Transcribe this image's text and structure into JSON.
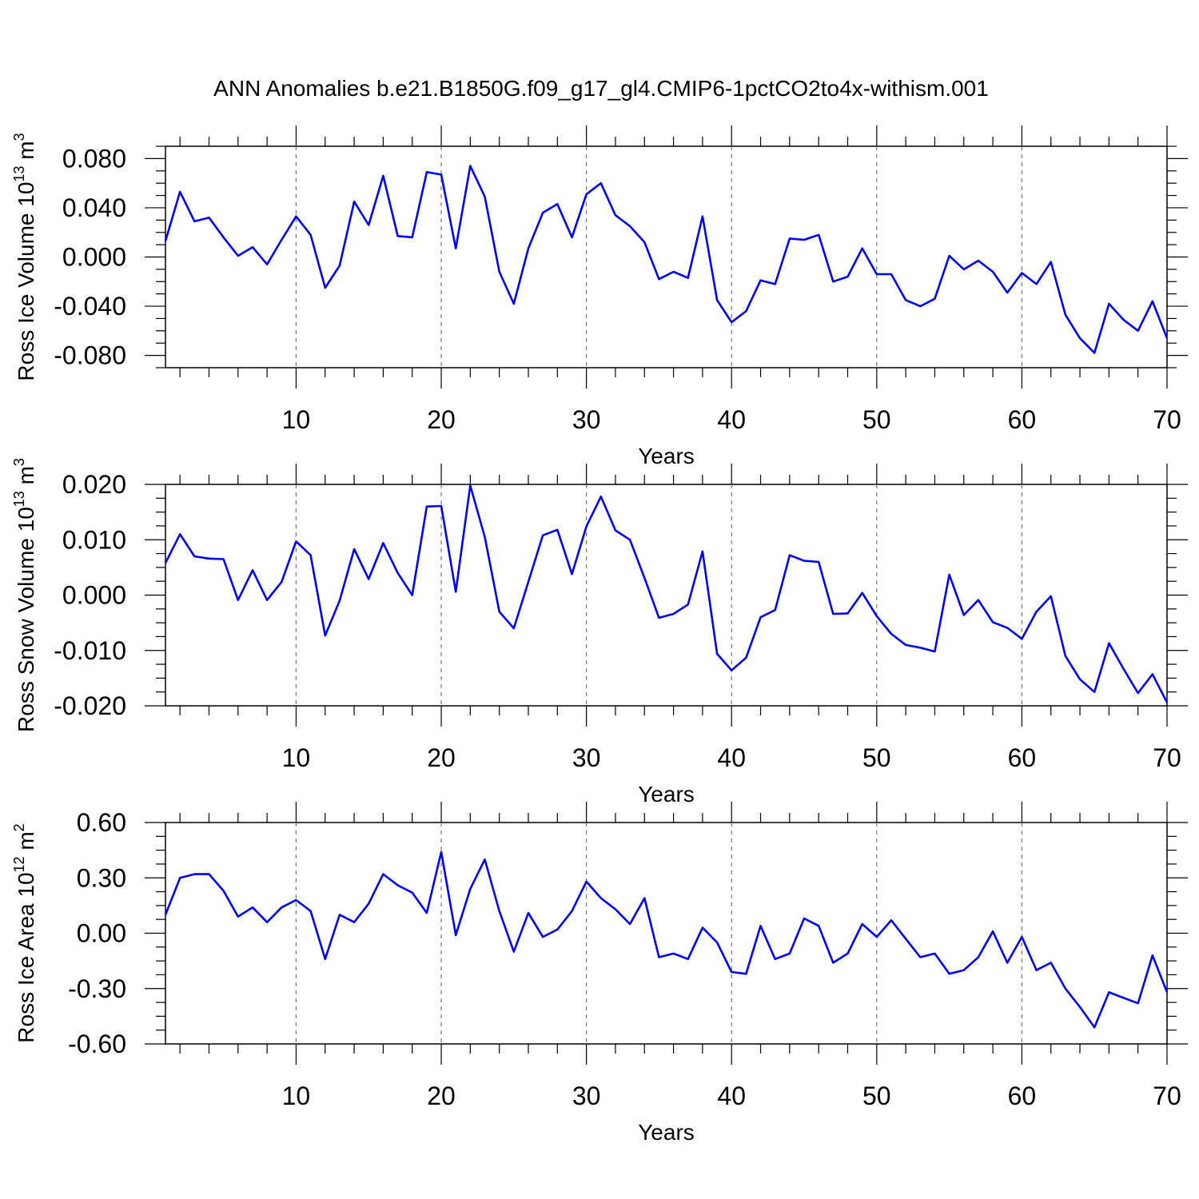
{
  "title": "ANN Anomalies b.e21.B1850G.f09_g17_gl4.CMIP6-1pctCO2to4x-withism.001",
  "chart_data": [
    {
      "type": "line",
      "title": "",
      "xlabel": "Years",
      "ylabel": "Ross Ice Volume 10",
      "ylabel_exp": "13",
      "ylabel_unit": " m",
      "ylabel_unit_exp": "3",
      "xlim": [
        1,
        70
      ],
      "ylim": [
        -0.09,
        0.09
      ],
      "xticks": [
        10,
        20,
        30,
        40,
        50,
        60,
        70
      ],
      "yticks": [
        -0.08,
        -0.04,
        0.0,
        0.04,
        0.08
      ],
      "ytick_labels": [
        "-0.080",
        "-0.040",
        "0.000",
        "0.040",
        "0.080"
      ],
      "grid": "vertical dashed at major x ticks",
      "color": "#0000ff",
      "x": [
        1,
        2,
        3,
        4,
        5,
        6,
        7,
        8,
        9,
        10,
        11,
        12,
        13,
        14,
        15,
        16,
        17,
        18,
        19,
        20,
        21,
        22,
        23,
        24,
        25,
        26,
        27,
        28,
        29,
        30,
        31,
        32,
        33,
        34,
        35,
        36,
        37,
        38,
        39,
        40,
        41,
        42,
        43,
        44,
        45,
        46,
        47,
        48,
        49,
        50,
        51,
        52,
        53,
        54,
        55,
        56,
        57,
        58,
        59,
        60,
        61,
        62,
        63,
        64,
        65,
        66,
        67,
        68,
        69,
        70
      ],
      "values": [
        0.013,
        0.053,
        0.029,
        0.032,
        0.016,
        0.001,
        0.008,
        -0.006,
        0.014,
        0.033,
        0.018,
        -0.025,
        -0.007,
        0.045,
        0.026,
        0.066,
        0.017,
        0.016,
        0.069,
        0.067,
        0.007,
        0.074,
        0.049,
        -0.012,
        -0.038,
        0.007,
        0.036,
        0.043,
        0.016,
        0.051,
        0.06,
        0.034,
        0.025,
        0.012,
        -0.018,
        -0.012,
        -0.017,
        0.033,
        -0.035,
        -0.053,
        -0.044,
        -0.019,
        -0.022,
        0.015,
        0.014,
        0.018,
        -0.02,
        -0.016,
        0.007,
        -0.014,
        -0.014,
        -0.035,
        -0.04,
        -0.034,
        0.001,
        -0.01,
        -0.003,
        -0.012,
        -0.029,
        -0.013,
        -0.022,
        -0.004,
        -0.047,
        -0.066,
        -0.078,
        -0.038,
        -0.051,
        -0.06,
        -0.036,
        -0.066
      ]
    },
    {
      "type": "line",
      "title": "",
      "xlabel": "Years",
      "ylabel": "Ross Snow Volume 10",
      "ylabel_exp": "13",
      "ylabel_unit": " m",
      "ylabel_unit_exp": "3",
      "xlim": [
        1,
        70
      ],
      "ylim": [
        -0.02,
        0.02
      ],
      "xticks": [
        10,
        20,
        30,
        40,
        50,
        60,
        70
      ],
      "yticks": [
        -0.02,
        -0.01,
        0.0,
        0.01,
        0.02
      ],
      "ytick_labels": [
        "-0.020",
        "-0.010",
        "0.000",
        "0.010",
        "0.020"
      ],
      "grid": "vertical dashed at major x ticks",
      "color": "#0000ff",
      "x": [
        1,
        2,
        3,
        4,
        5,
        6,
        7,
        8,
        9,
        10,
        11,
        12,
        13,
        14,
        15,
        16,
        17,
        18,
        19,
        20,
        21,
        22,
        23,
        24,
        25,
        26,
        27,
        28,
        29,
        30,
        31,
        32,
        33,
        34,
        35,
        36,
        37,
        38,
        39,
        40,
        41,
        42,
        43,
        44,
        45,
        46,
        47,
        48,
        49,
        50,
        51,
        52,
        53,
        54,
        55,
        56,
        57,
        58,
        59,
        60,
        61,
        62,
        63,
        64,
        65,
        66,
        67,
        68,
        69,
        70
      ],
      "values": [
        0.0058,
        0.011,
        0.007,
        0.0066,
        0.0065,
        -0.0009,
        0.0045,
        -0.0009,
        0.0024,
        0.0097,
        0.0072,
        -0.0073,
        -0.001,
        0.0083,
        0.0029,
        0.0094,
        0.004,
        0.0,
        0.016,
        0.0161,
        0.0006,
        0.0198,
        0.0105,
        -0.003,
        -0.006,
        0.0024,
        0.0108,
        0.0118,
        0.0038,
        0.0124,
        0.0178,
        0.0117,
        0.01,
        0.0031,
        -0.0041,
        -0.0034,
        -0.0017,
        0.0079,
        -0.0106,
        -0.0136,
        -0.0113,
        -0.004,
        -0.0027,
        0.0072,
        0.0062,
        0.006,
        -0.0034,
        -0.0033,
        0.0004,
        -0.0038,
        -0.007,
        -0.009,
        -0.0095,
        -0.0102,
        0.0037,
        -0.0036,
        -0.0009,
        -0.0049,
        -0.0059,
        -0.0079,
        -0.003,
        -0.0002,
        -0.011,
        -0.0152,
        -0.0175,
        -0.0087,
        -0.0133,
        -0.0177,
        -0.0143,
        -0.0194
      ]
    },
    {
      "type": "line",
      "title": "",
      "xlabel": "Years",
      "ylabel": "Ross Ice Area 10",
      "ylabel_exp": "12",
      "ylabel_unit": " m",
      "ylabel_unit_exp": "2",
      "xlim": [
        1,
        70
      ],
      "ylim": [
        -0.6,
        0.6
      ],
      "xticks": [
        10,
        20,
        30,
        40,
        50,
        60,
        70
      ],
      "yticks": [
        -0.6,
        -0.3,
        0.0,
        0.3,
        0.6
      ],
      "ytick_labels": [
        "-0.60",
        "-0.30",
        "0.00",
        "0.30",
        "0.60"
      ],
      "grid": "vertical dashed at major x ticks",
      "color": "#0000ff",
      "x": [
        1,
        2,
        3,
        4,
        5,
        6,
        7,
        8,
        9,
        10,
        11,
        12,
        13,
        14,
        15,
        16,
        17,
        18,
        19,
        20,
        21,
        22,
        23,
        24,
        25,
        26,
        27,
        28,
        29,
        30,
        31,
        32,
        33,
        34,
        35,
        36,
        37,
        38,
        39,
        40,
        41,
        42,
        43,
        44,
        45,
        46,
        47,
        48,
        49,
        50,
        51,
        52,
        53,
        54,
        55,
        56,
        57,
        58,
        59,
        60,
        61,
        62,
        63,
        64,
        65,
        66,
        67,
        68,
        69,
        70
      ],
      "values": [
        0.1,
        0.3,
        0.32,
        0.32,
        0.23,
        0.09,
        0.14,
        0.06,
        0.14,
        0.18,
        0.12,
        -0.14,
        0.1,
        0.06,
        0.16,
        0.32,
        0.26,
        0.22,
        0.11,
        0.44,
        -0.01,
        0.24,
        0.4,
        0.12,
        -0.1,
        0.11,
        -0.02,
        0.02,
        0.12,
        0.28,
        0.19,
        0.13,
        0.05,
        0.19,
        -0.13,
        -0.11,
        -0.14,
        0.03,
        -0.05,
        -0.21,
        -0.22,
        0.04,
        -0.14,
        -0.11,
        0.08,
        0.04,
        -0.16,
        -0.11,
        0.05,
        -0.02,
        0.07,
        -0.03,
        -0.13,
        -0.11,
        -0.22,
        -0.2,
        -0.13,
        0.01,
        -0.16,
        -0.02,
        -0.2,
        -0.16,
        -0.3,
        -0.4,
        -0.51,
        -0.32,
        -0.35,
        -0.38,
        -0.12,
        -0.32
      ]
    }
  ]
}
